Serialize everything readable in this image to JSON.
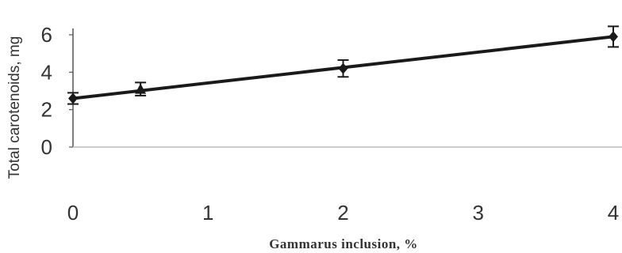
{
  "chart_data": {
    "type": "line",
    "title": "",
    "xlabel": "Gammarus inclusion, %",
    "ylabel": "Total carotenoids, mg",
    "xlim": [
      0,
      4
    ],
    "ylim": [
      0,
      6
    ],
    "x_ticks": [
      "0",
      "1",
      "2",
      "3",
      "4"
    ],
    "y_ticks": [
      "0",
      "2",
      "4",
      "6"
    ],
    "grid": false,
    "legend": "none",
    "series": [
      {
        "x": [
          0,
          0.5,
          2,
          4
        ],
        "y": [
          2.6,
          3.1,
          4.2,
          5.9
        ],
        "error": [
          0.3,
          0.35,
          0.45,
          0.55
        ],
        "color": "#1a1a1a",
        "markers": [
          "diamond",
          "triangle",
          "diamond",
          "diamond"
        ]
      }
    ],
    "trendline": {
      "x": [
        0,
        4
      ],
      "y": [
        2.6,
        5.9
      ]
    }
  }
}
